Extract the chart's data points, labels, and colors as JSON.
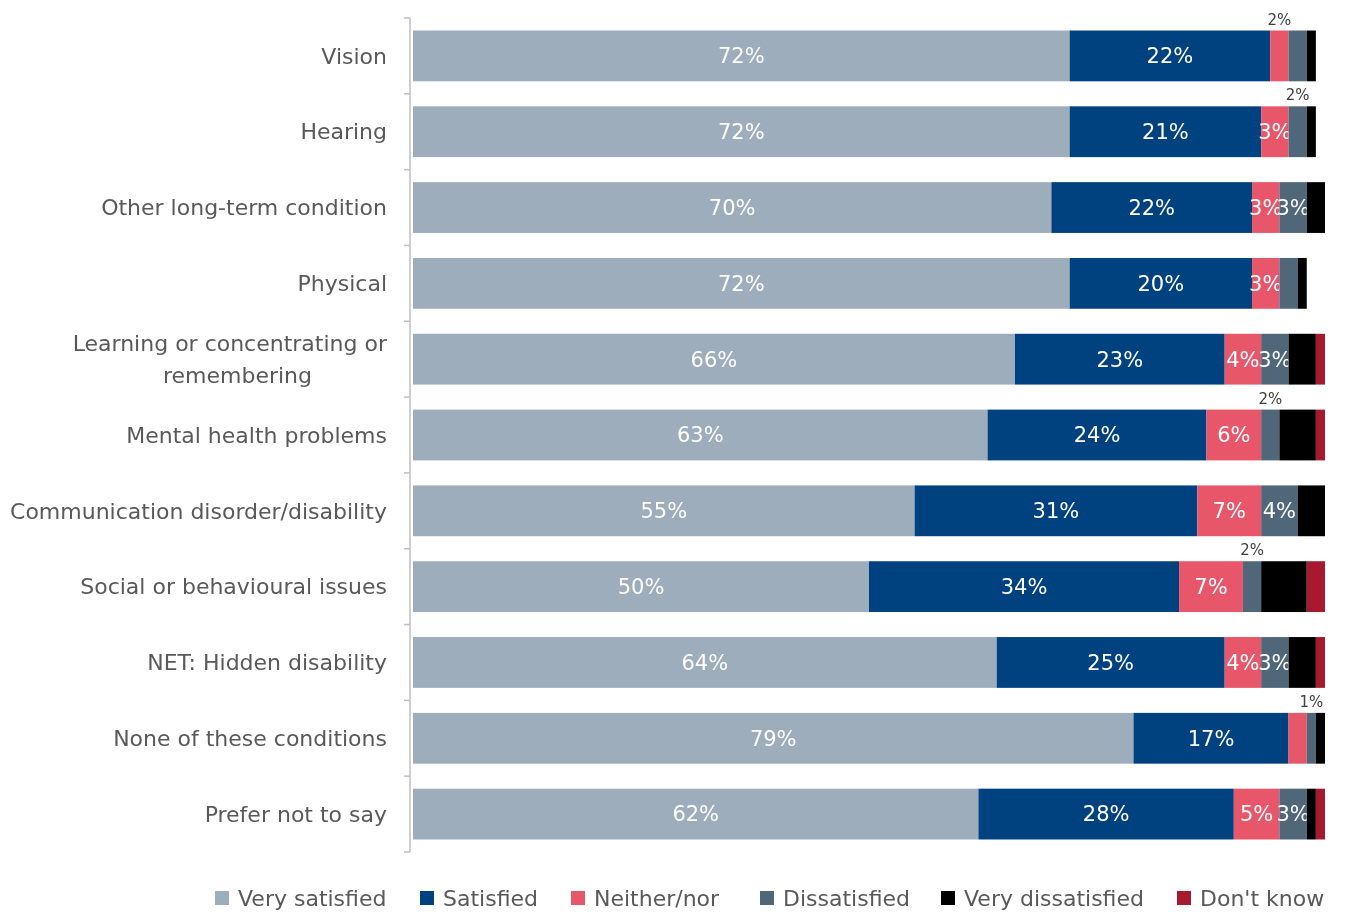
{
  "chart_data": {
    "type": "bar",
    "orientation": "horizontal",
    "stacked": true,
    "legend": "bottom",
    "tick_labels": "y",
    "xlim": [
      0,
      100
    ],
    "categories": [
      "Vision",
      "Hearing",
      "Other long-term condition",
      "Physical",
      "Learning or concentrating or remembering",
      "Mental health problems",
      "Communication disorder/disability",
      "Social or behavioural issues",
      "NET: Hidden disability",
      "None of these conditions",
      "Prefer not to say"
    ],
    "series": [
      {
        "name": "Very satisfied",
        "color": "#9dadbc",
        "values": [
          72,
          72,
          70,
          72,
          66,
          63,
          55,
          50,
          64,
          79,
          62
        ],
        "value_labels": [
          "72%",
          "72%",
          "70%",
          "72%",
          "66%",
          "63%",
          "55%",
          "50%",
          "64%",
          "79%",
          "62%"
        ]
      },
      {
        "name": "Satisfied",
        "color": "#00427f",
        "values": [
          22,
          21,
          22,
          20,
          23,
          24,
          31,
          34,
          25,
          17,
          28
        ],
        "value_labels": [
          "22%",
          "21%",
          "22%",
          "20%",
          "23%",
          "24%",
          "31%",
          "34%",
          "25%",
          "17%",
          "28%"
        ]
      },
      {
        "name": "Neither/nor",
        "color": "#e8566a",
        "values": [
          2,
          3,
          3,
          3,
          4,
          6,
          7,
          7,
          4,
          2,
          5
        ],
        "value_labels": [
          "2%",
          "3%",
          "3%",
          "3%",
          "4%",
          "6%",
          "7%",
          "7%",
          "4%",
          null,
          "5%"
        ]
      },
      {
        "name": "Dissatisfied",
        "color": "#506679",
        "values": [
          2,
          2,
          3,
          2,
          3,
          2,
          4,
          2,
          3,
          1,
          3
        ],
        "value_labels": [
          null,
          "2%",
          "3%",
          null,
          "3%",
          "2%",
          "4%",
          "2%",
          "3%",
          "1%",
          "3%"
        ]
      },
      {
        "name": "Very dissatisfied",
        "color": "#000000",
        "values": [
          1,
          1,
          2,
          1,
          3,
          4,
          3,
          5,
          3,
          1,
          1
        ],
        "value_labels": [
          null,
          null,
          null,
          null,
          null,
          null,
          null,
          null,
          null,
          null,
          null
        ]
      },
      {
        "name": "Don't know",
        "color": "#a6192e",
        "values": [
          0,
          0,
          0,
          0,
          1,
          1,
          0,
          2,
          1,
          0,
          1
        ],
        "value_labels": [
          null,
          null,
          null,
          null,
          null,
          null,
          null,
          null,
          null,
          null,
          null
        ]
      }
    ]
  }
}
